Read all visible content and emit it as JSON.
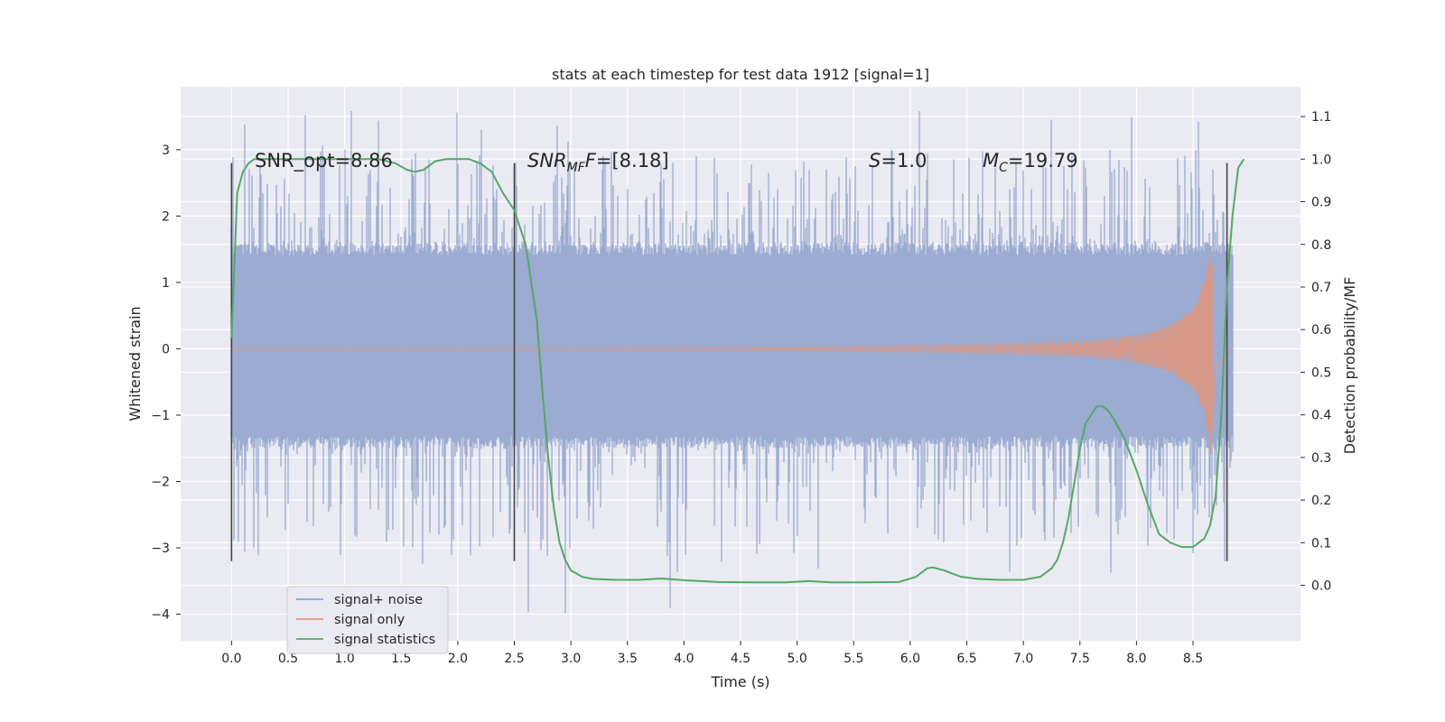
{
  "chart_data": {
    "type": "line",
    "title": "stats at each timestep for test data 1912 [signal=1]",
    "xlabel": "Time (s)",
    "ylabel_left": "Whitened strain",
    "ylabel_right": "Detection probability/MF",
    "xlim": [
      -0.45,
      9.45
    ],
    "ylim_left": [
      -4.4,
      3.95
    ],
    "ylim_right": [
      -0.13,
      1.17
    ],
    "x_ticks": [
      "0.0",
      "0.5",
      "1.0",
      "1.5",
      "2.0",
      "2.5",
      "3.0",
      "3.5",
      "4.0",
      "4.5",
      "5.0",
      "5.5",
      "6.0",
      "6.5",
      "7.0",
      "7.5",
      "8.0",
      "8.5"
    ],
    "y_left_ticks": [
      "−4",
      "−3",
      "−2",
      "−1",
      "0",
      "1",
      "2",
      "3"
    ],
    "y_right_ticks": [
      "0.0",
      "0.1",
      "0.2",
      "0.3",
      "0.4",
      "0.5",
      "0.6",
      "0.7",
      "0.8",
      "0.9",
      "1.0",
      "1.1"
    ],
    "grid": true,
    "legend_position": "lower-left",
    "colors": {
      "background": "#eaeaf2",
      "grid": "#ffffff",
      "noise": "#8da0cb",
      "signal": "#e1957c",
      "stats": "#55a868",
      "vline": "#444444"
    },
    "annotations": {
      "snr_opt": "SNR_opt=8.86",
      "snr_mf_main": "SNR",
      "snr_mf_sub": "MF",
      "snr_mf_value": "=[8.18]",
      "s_main": "S",
      "s_value": "=1.0",
      "mc_main": "M",
      "mc_sub": "C",
      "mc_value": "=19.79"
    },
    "vertical_lines": [
      0.0,
      2.5,
      8.8
    ],
    "noise_envelope": {
      "t_start": 0.0,
      "t_end": 8.85,
      "typical_max": 1.6,
      "typical_min": -1.5,
      "peak_max": 3.6,
      "peak_min": -4.0
    },
    "signal_only": {
      "t_start": 0.0,
      "t_end": 8.85,
      "amplitude_points": [
        [
          0.0,
          0.01
        ],
        [
          3.0,
          0.01
        ],
        [
          4.0,
          0.02
        ],
        [
          5.0,
          0.03
        ],
        [
          6.0,
          0.05
        ],
        [
          6.5,
          0.06
        ],
        [
          7.0,
          0.08
        ],
        [
          7.5,
          0.11
        ],
        [
          8.0,
          0.2
        ],
        [
          8.3,
          0.35
        ],
        [
          8.5,
          0.6
        ],
        [
          8.6,
          1.0
        ],
        [
          8.66,
          1.65
        ],
        [
          8.7,
          0.3
        ],
        [
          8.85,
          0.0
        ]
      ]
    },
    "series": [
      {
        "name": "signal+ noise"
      },
      {
        "name": "signal only"
      },
      {
        "name": "signal statistics",
        "x": [
          0.0,
          0.05,
          0.1,
          0.15,
          0.2,
          0.3,
          0.5,
          1.0,
          1.3,
          1.45,
          1.55,
          1.62,
          1.7,
          1.8,
          1.9,
          2.0,
          2.1,
          2.2,
          2.3,
          2.4,
          2.5,
          2.6,
          2.7,
          2.75,
          2.8,
          2.85,
          2.9,
          2.95,
          3.0,
          3.1,
          3.2,
          3.4,
          3.6,
          3.8,
          4.0,
          4.3,
          4.6,
          4.9,
          5.1,
          5.3,
          5.6,
          5.9,
          6.05,
          6.15,
          6.2,
          6.3,
          6.45,
          6.6,
          6.8,
          7.0,
          7.15,
          7.25,
          7.3,
          7.35,
          7.4,
          7.45,
          7.5,
          7.55,
          7.6,
          7.65,
          7.7,
          7.75,
          7.8,
          7.9,
          8.0,
          8.1,
          8.2,
          8.3,
          8.4,
          8.5,
          8.6,
          8.65,
          8.7,
          8.75,
          8.8,
          8.85,
          8.9,
          8.95
        ],
        "values": [
          0.58,
          0.92,
          0.97,
          0.99,
          1.0,
          1.0,
          1.0,
          1.0,
          1.0,
          0.99,
          0.975,
          0.97,
          0.975,
          0.995,
          1.0,
          1.0,
          1.0,
          0.99,
          0.97,
          0.92,
          0.88,
          0.8,
          0.62,
          0.45,
          0.3,
          0.18,
          0.1,
          0.06,
          0.035,
          0.02,
          0.015,
          0.013,
          0.013,
          0.016,
          0.012,
          0.008,
          0.007,
          0.007,
          0.01,
          0.007,
          0.007,
          0.008,
          0.02,
          0.04,
          0.042,
          0.035,
          0.02,
          0.015,
          0.013,
          0.013,
          0.02,
          0.04,
          0.06,
          0.1,
          0.16,
          0.24,
          0.32,
          0.38,
          0.4,
          0.42,
          0.42,
          0.41,
          0.39,
          0.34,
          0.27,
          0.19,
          0.12,
          0.1,
          0.09,
          0.09,
          0.11,
          0.14,
          0.21,
          0.4,
          0.7,
          0.87,
          0.98,
          1.0
        ]
      }
    ]
  }
}
